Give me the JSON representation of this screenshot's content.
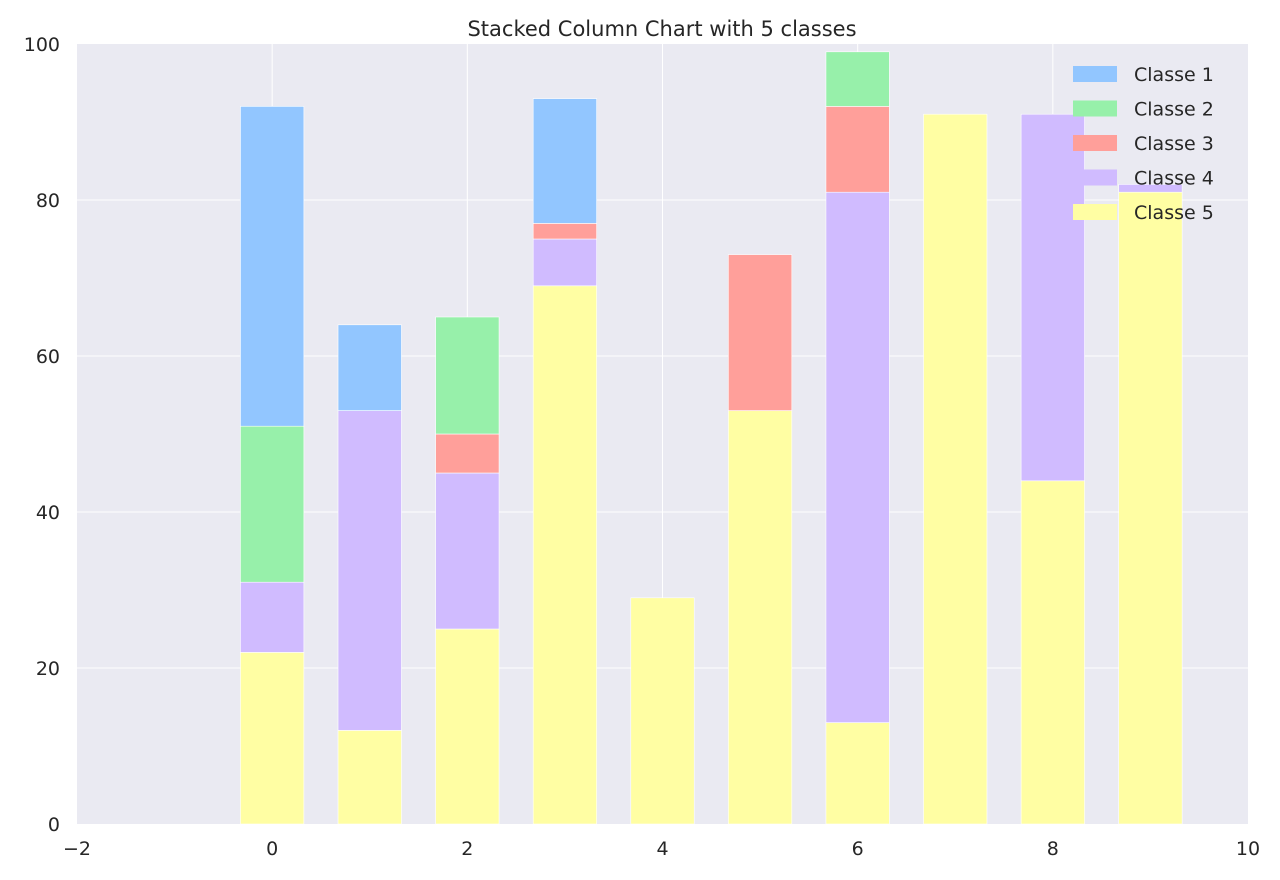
{
  "chart_data": {
    "type": "bar",
    "stacked": true,
    "title": "Stacked Column Chart with 5 classes",
    "xlabel": "",
    "ylabel": "",
    "x": [
      0,
      1,
      2,
      3,
      4,
      5,
      6,
      7,
      8,
      9
    ],
    "xlim": [
      -2,
      10
    ],
    "ylim": [
      0,
      100
    ],
    "xticks": [
      -2,
      0,
      2,
      4,
      6,
      8,
      10
    ],
    "yticks": [
      0,
      20,
      40,
      60,
      80,
      100
    ],
    "xtick_labels": [
      "−2",
      "0",
      "2",
      "4",
      "6",
      "8",
      "10"
    ],
    "ytick_labels": [
      "0",
      "20",
      "40",
      "60",
      "80",
      "100"
    ],
    "bar_width": 0.65,
    "grid": true,
    "background": "#eaeaf2",
    "legend_position": "top-right",
    "stack_order": [
      "Classe 5",
      "Classe 4",
      "Classe 3",
      "Classe 2",
      "Classe 1"
    ],
    "series": [
      {
        "name": "Classe 1",
        "color": "#92c6ff",
        "values": [
          41,
          11,
          0,
          16,
          0,
          0,
          0,
          0,
          0,
          0
        ]
      },
      {
        "name": "Classe 2",
        "color": "#97f0aa",
        "values": [
          20,
          0,
          15,
          0,
          0,
          0,
          7,
          0,
          0,
          0
        ]
      },
      {
        "name": "Classe 3",
        "color": "#ff9f9a",
        "values": [
          0,
          0,
          5,
          2,
          0,
          20,
          11,
          0,
          0,
          0
        ]
      },
      {
        "name": "Classe 4",
        "color": "#d0bbff",
        "values": [
          9,
          41,
          20,
          6,
          0,
          0,
          68,
          0,
          47,
          1
        ]
      },
      {
        "name": "Classe 5",
        "color": "#fffea3",
        "values": [
          22,
          12,
          25,
          69,
          29,
          53,
          13,
          91,
          44,
          81
        ]
      }
    ]
  }
}
